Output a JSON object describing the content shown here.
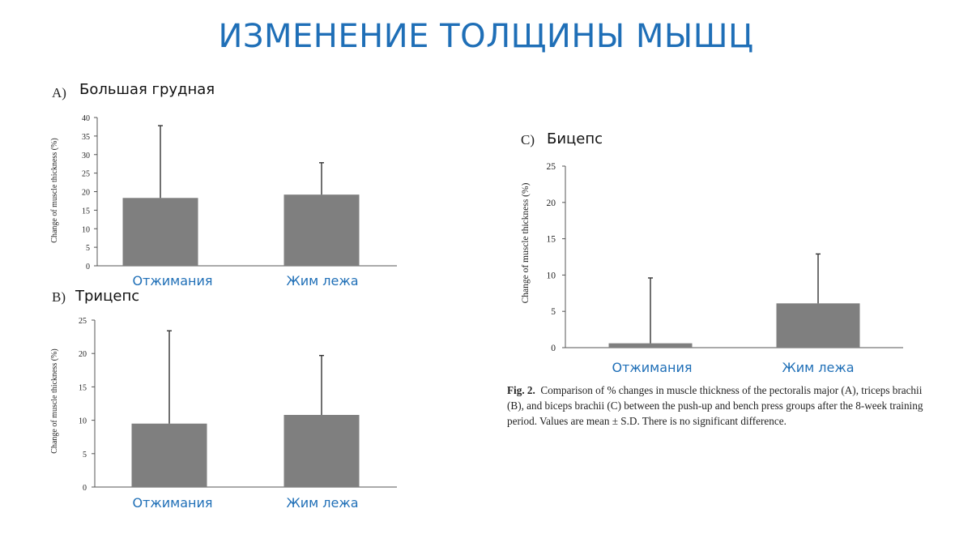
{
  "title": "ИЗМЕНЕНИЕ ТОЛЩИНЫ МЫШЦ",
  "bar_color": "#7f7f7f",
  "axis_color": "#555555",
  "category_color": "#1f6fb7",
  "caption": {
    "fig_label": "Fig. 2.",
    "text": "Comparison of % changes in muscle thickness of the pectoralis major (A), triceps brachii (B), and biceps brachii (C) between the push-up and bench press groups after the 8-week training period. Values are mean ± S.D. There is no significant difference."
  },
  "chart_data": [
    {
      "type": "bar",
      "panel_letter": "A)",
      "panel_name": "Большая грудная",
      "ylabel": "Change of muscle thickness (%)",
      "categories": [
        "Отжимания",
        "Жим лежа"
      ],
      "values": [
        18.3,
        19.2
      ],
      "errors": [
        19.5,
        8.6
      ],
      "ylim": [
        0,
        40
      ],
      "yticks": [
        "0",
        "5",
        "10",
        "15",
        "20",
        "25",
        "30",
        "35",
        "40"
      ]
    },
    {
      "type": "bar",
      "panel_letter": "B)",
      "panel_name": "Трицепс",
      "ylabel": "Change of muscle thickness (%)",
      "categories": [
        "Отжимания",
        "Жим лежа"
      ],
      "values": [
        9.5,
        10.8
      ],
      "errors": [
        13.9,
        8.9
      ],
      "ylim": [
        0,
        25
      ],
      "yticks": [
        "0",
        "5",
        "10",
        "15",
        "20",
        "25"
      ]
    },
    {
      "type": "bar",
      "panel_letter": "C)",
      "panel_name": "Бицепс",
      "ylabel": "Change of muscle thickness (%)",
      "categories": [
        "Отжимания",
        "Жим лежа"
      ],
      "values": [
        0.6,
        6.1
      ],
      "errors": [
        9.0,
        6.8
      ],
      "ylim": [
        0,
        25
      ],
      "yticks": [
        "0",
        "5",
        "10",
        "15",
        "20",
        "25"
      ]
    }
  ]
}
